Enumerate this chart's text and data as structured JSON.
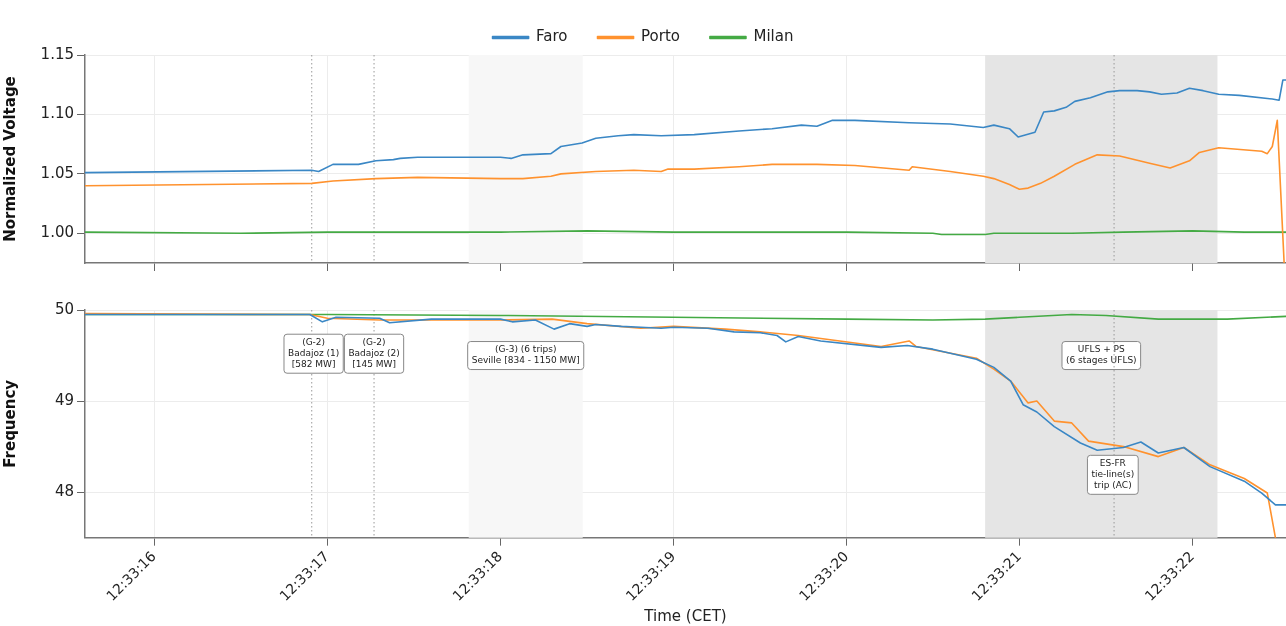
{
  "chart_data": [
    {
      "type": "line",
      "ylabel": "Normalized Voltage",
      "legend": "top",
      "grid": true,
      "tick_labels": "y",
      "marker": "none",
      "line_style": "solid",
      "xlim": [
        12.554333,
        12.556261
      ],
      "xticks": [
        {
          "value": 12.554444,
          "label": null
        },
        {
          "value": 12.554722,
          "label": null
        },
        {
          "value": 12.555,
          "label": null
        },
        {
          "value": 12.555278,
          "label": null
        },
        {
          "value": 12.555556,
          "label": null
        },
        {
          "value": 12.555833,
          "label": null
        },
        {
          "value": 12.556111,
          "label": null
        }
      ],
      "ylim": [
        0.975,
        1.15
      ],
      "yticks": [
        {
          "value": 1,
          "label": "1.00"
        },
        {
          "value": 1.05,
          "label": "1.05"
        },
        {
          "value": 1.1,
          "label": "1.10"
        },
        {
          "value": 1.15,
          "label": "1.15"
        }
      ],
      "bands": [
        {
          "axis": "x",
          "from": 12.554949,
          "to": 12.555132,
          "color": "#f7f7f7"
        },
        {
          "axis": "x",
          "from": 12.555778,
          "to": 12.556151,
          "color": "#e5e5e5"
        }
      ],
      "ref_lines": [
        {
          "axis": "x",
          "value": 12.554697,
          "color": "#999999",
          "line_style": "dotted"
        },
        {
          "axis": "x",
          "value": 12.554797,
          "color": "#999999",
          "line_style": "dotted"
        },
        {
          "axis": "x",
          "value": 12.555985,
          "color": "#999999",
          "line_style": "dotted"
        }
      ],
      "series": [
        {
          "name": "Faro",
          "color": "#3a87c5",
          "x": [
            12.554333,
            12.554697,
            12.554708,
            12.554731,
            12.554772,
            12.5548,
            12.554828,
            12.554839,
            12.554867,
            12.555,
            12.555017,
            12.555036,
            12.555081,
            12.555097,
            12.555131,
            12.555153,
            12.555189,
            12.555214,
            12.555258,
            12.555311,
            12.555383,
            12.555436,
            12.555483,
            12.555508,
            12.555533,
            12.555569,
            12.555656,
            12.555722,
            12.555775,
            12.555792,
            12.555817,
            12.555831,
            12.555858,
            12.555872,
            12.555889,
            12.555908,
            12.555922,
            12.555947,
            12.555975,
            12.555994,
            12.556022,
            12.556042,
            12.556061,
            12.556086,
            12.556106,
            12.556128,
            12.556153,
            12.556186,
            12.556239,
            12.55625,
            12.556256,
            12.556261
          ],
          "values": [
            1.051,
            1.053,
            1.052,
            1.058,
            1.058,
            1.061,
            1.062,
            1.063,
            1.064,
            1.064,
            1.063,
            1.066,
            1.067,
            1.073,
            1.076,
            1.08,
            1.082,
            1.083,
            1.082,
            1.083,
            1.086,
            1.088,
            1.091,
            1.09,
            1.095,
            1.095,
            1.093,
            1.092,
            1.089,
            1.091,
            1.088,
            1.081,
            1.085,
            1.102,
            1.103,
            1.106,
            1.111,
            1.114,
            1.119,
            1.12,
            1.12,
            1.119,
            1.117,
            1.118,
            1.122,
            1.12,
            1.117,
            1.116,
            1.113,
            1.112,
            1.129,
            1.129
          ]
        },
        {
          "name": "Porto",
          "color": "#ff922e",
          "x": [
            12.554333,
            12.554697,
            12.554731,
            12.5548,
            12.554867,
            12.555,
            12.555036,
            12.555081,
            12.555097,
            12.555153,
            12.555214,
            12.555258,
            12.555269,
            12.555311,
            12.555383,
            12.555436,
            12.555508,
            12.555569,
            12.555656,
            12.555661,
            12.555722,
            12.555775,
            12.555792,
            12.555817,
            12.555833,
            12.555847,
            12.555867,
            12.555889,
            12.555922,
            12.555958,
            12.555994,
            12.556042,
            12.556075,
            12.556106,
            12.556122,
            12.556153,
            12.556222,
            12.556231,
            12.556239,
            12.556247,
            12.556258
          ],
          "values": [
            1.04,
            1.042,
            1.044,
            1.046,
            1.047,
            1.046,
            1.046,
            1.048,
            1.05,
            1.052,
            1.053,
            1.052,
            1.054,
            1.054,
            1.056,
            1.058,
            1.058,
            1.057,
            1.053,
            1.056,
            1.052,
            1.048,
            1.046,
            1.041,
            1.037,
            1.038,
            1.042,
            1.048,
            1.058,
            1.066,
            1.065,
            1.059,
            1.055,
            1.061,
            1.068,
            1.072,
            1.069,
            1.067,
            1.073,
            1.095,
            0.975
          ]
        },
        {
          "name": "Milan",
          "color": "#44aa44",
          "x": [
            12.554333,
            12.554583,
            12.554722,
            12.555,
            12.555139,
            12.555278,
            12.555556,
            12.555694,
            12.555708,
            12.555778,
            12.555792,
            12.555917,
            12.556,
            12.556111,
            12.556194,
            12.556261
          ],
          "values": [
            1.001,
            1.0,
            1.001,
            1.001,
            1.002,
            1.001,
            1.001,
            1.0,
            0.999,
            0.999,
            1.0,
            1.0,
            1.001,
            1.002,
            1.001,
            1.001
          ]
        }
      ]
    },
    {
      "type": "line",
      "xlabel": "Time (CET)",
      "ylabel": "Frequency",
      "grid": true,
      "marker": "none",
      "line_style": "solid",
      "xlim": [
        12.554333,
        12.556261
      ],
      "xticks": [
        {
          "value": 12.554444,
          "label": "12:33:16"
        },
        {
          "value": 12.554722,
          "label": "12:33:17"
        },
        {
          "value": 12.555,
          "label": "12:33:18"
        },
        {
          "value": 12.555278,
          "label": "12:33:19"
        },
        {
          "value": 12.555556,
          "label": "12:33:20"
        },
        {
          "value": 12.555833,
          "label": "12:33:21"
        },
        {
          "value": 12.556111,
          "label": "12:33:22"
        }
      ],
      "ylim": [
        47.5,
        50.0
      ],
      "yticks": [
        48,
        49,
        50
      ],
      "bands": [
        {
          "axis": "x",
          "from": 12.554949,
          "to": 12.555132,
          "color": "#f7f7f7",
          "label": "(G-3) (6 trips)\nSeville [834 - 1150 MW]"
        },
        {
          "axis": "x",
          "from": 12.555778,
          "to": 12.556151,
          "color": "#e5e5e5",
          "label": "UFLS + PS\n(6 stages UFLS)"
        }
      ],
      "ref_lines": [
        {
          "axis": "x",
          "value": 12.554697,
          "color": "#999999",
          "line_style": "dotted"
        },
        {
          "axis": "x",
          "value": 12.554797,
          "color": "#999999",
          "line_style": "dotted"
        },
        {
          "axis": "x",
          "value": 12.555985,
          "color": "#999999",
          "line_style": "dotted"
        }
      ],
      "annotations": [
        {
          "text": "(G-2)\nBadajoz (1)\n[582 MW]",
          "x": 12.5547,
          "y": 49.52
        },
        {
          "text": "(G-2)\nBadajoz (2)\n[145 MW]",
          "x": 12.554797,
          "y": 49.52
        },
        {
          "text": "ES-FR\ntie-line(s)\ntrip (AC)",
          "x": 12.555983,
          "y": 48.19
        }
      ],
      "series": [
        {
          "color": "#3a87c5",
          "x": [
            12.554333,
            12.554694,
            12.554714,
            12.554736,
            12.554806,
            12.554822,
            12.554889,
            12.555,
            12.555019,
            12.555056,
            12.555086,
            12.555111,
            12.555139,
            12.555153,
            12.555194,
            12.555225,
            12.555258,
            12.555278,
            12.555333,
            12.555375,
            12.555417,
            12.555444,
            12.555458,
            12.555478,
            12.555514,
            12.555611,
            12.555653,
            12.555694,
            12.555764,
            12.555792,
            12.555819,
            12.555839,
            12.555861,
            12.555889,
            12.555931,
            12.555958,
            12.556,
            12.556028,
            12.556056,
            12.556097,
            12.556139,
            12.556194,
            12.556222,
            12.556244,
            12.556261
          ],
          "values": [
            49.95,
            49.95,
            49.87,
            49.92,
            49.91,
            49.86,
            49.9,
            49.9,
            49.87,
            49.89,
            49.79,
            49.85,
            49.82,
            49.84,
            49.82,
            49.81,
            49.8,
            49.81,
            49.8,
            49.76,
            49.75,
            49.72,
            49.65,
            49.71,
            49.66,
            49.59,
            49.61,
            49.57,
            49.46,
            49.37,
            49.22,
            48.96,
            48.88,
            48.72,
            48.54,
            48.46,
            48.49,
            48.55,
            48.43,
            48.49,
            48.28,
            48.12,
            47.99,
            47.86,
            47.86
          ]
        },
        {
          "color": "#ff922e",
          "x": [
            12.554333,
            12.554694,
            12.554722,
            12.554806,
            12.555,
            12.555083,
            12.555139,
            12.555225,
            12.555278,
            12.555361,
            12.555417,
            12.555478,
            12.555611,
            12.555656,
            12.555667,
            12.555764,
            12.555792,
            12.555819,
            12.555847,
            12.555861,
            12.555889,
            12.555917,
            12.555944,
            12.556,
            12.556056,
            12.556097,
            12.556139,
            12.556194,
            12.556231,
            12.556244
          ],
          "values": [
            49.96,
            49.95,
            49.91,
            49.89,
            49.89,
            49.9,
            49.85,
            49.8,
            49.82,
            49.79,
            49.76,
            49.72,
            49.6,
            49.66,
            49.6,
            49.47,
            49.35,
            49.22,
            48.98,
            49.0,
            48.78,
            48.76,
            48.56,
            48.5,
            48.39,
            48.49,
            48.3,
            48.15,
            47.99,
            47.5
          ]
        },
        {
          "color": "#44aa44",
          "x": [
            12.554333,
            12.554722,
            12.555,
            12.555278,
            12.555556,
            12.555694,
            12.555778,
            12.555833,
            12.555917,
            12.555972,
            12.556056,
            12.556167,
            12.556261
          ],
          "values": [
            49.95,
            49.95,
            49.94,
            49.92,
            49.9,
            49.89,
            49.9,
            49.92,
            49.95,
            49.94,
            49.9,
            49.9,
            49.93
          ]
        }
      ]
    }
  ]
}
